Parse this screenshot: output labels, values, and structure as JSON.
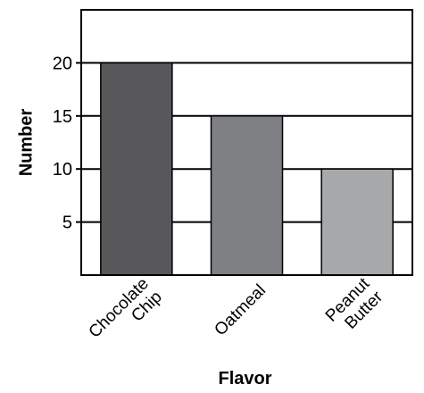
{
  "chart_data": {
    "type": "bar",
    "categories": [
      "Chocolate Chip",
      "Oatmeal",
      "Peanut Butter"
    ],
    "category_lines": [
      [
        "Chocolate",
        "Chip"
      ],
      [
        "Oatmeal"
      ],
      [
        "Peanut",
        "Butter"
      ]
    ],
    "values": [
      20,
      15,
      10
    ],
    "bar_colors": [
      "#58585a",
      "#7f8083",
      "#a7a8aa"
    ],
    "title": "",
    "xlabel": "Flavor",
    "ylabel": "Number",
    "ylim": [
      0,
      25
    ],
    "yticks": [
      5,
      10,
      15,
      20
    ],
    "grid": true,
    "legend": "none"
  }
}
